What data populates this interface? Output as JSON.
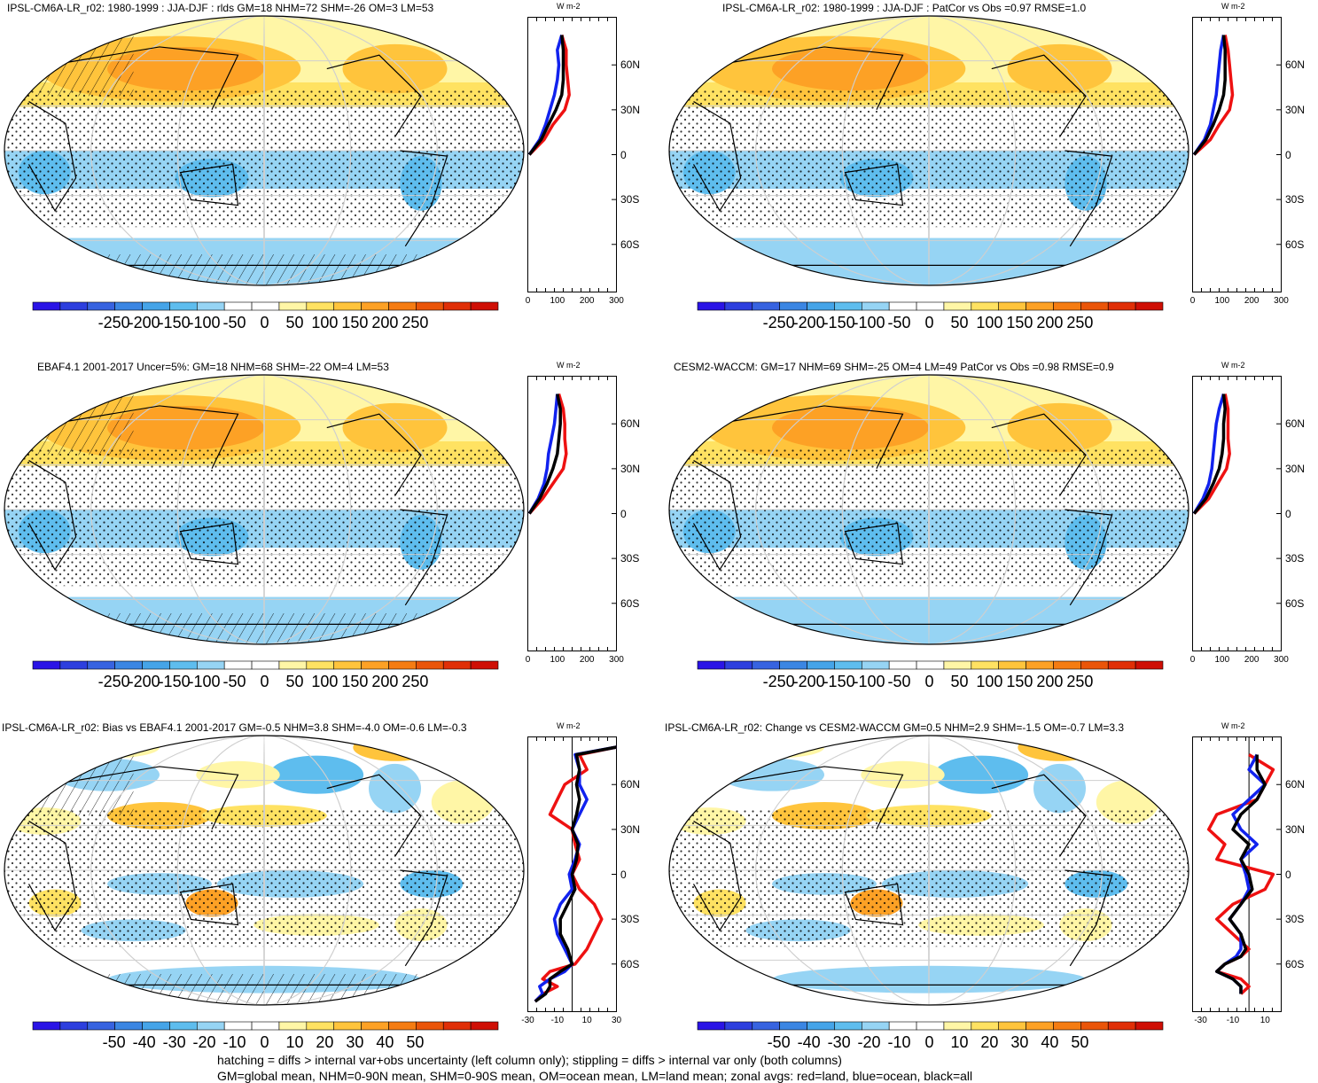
{
  "footer": {
    "line1": "hatching = diffs > internal var+obs uncertainty (left column only); stippling = diffs > internal var only (both columns)",
    "line2": "GM=global mean, NHM=0-90N mean, SHM=0-90S mean, OM=ocean mean, LM=land mean; zonal avgs: red=land, blue=ocean, black=all"
  },
  "colors": {
    "land": "#ee1111",
    "ocean": "#1122ee",
    "all": "#000000"
  },
  "chart_data": [
    {
      "type": "heatmap",
      "title": "IPSL-CM6A-LR_r02: 1980-1999 : JJA-DJF : rlds GM=18 NHM=72 SHM=-26 OM=3 LM=53",
      "kind": "full",
      "hatching": true,
      "colorbar": {
        "ticks": [
          "-250",
          "-200",
          "-150",
          "-100",
          "-50",
          "0",
          "50",
          "100",
          "150",
          "200",
          "250"
        ],
        "colors": [
          "#2a14e6",
          "#2d3fde",
          "#3763e0",
          "#3b86e3",
          "#45a4e8",
          "#5ebdee",
          "#96d4f4",
          "#ffffff",
          "#ffffff",
          "#fff6a6",
          "#ffe262",
          "#ffc43c",
          "#fda125",
          "#f57c12",
          "#ea5509",
          "#e02f07",
          "#cf0f05"
        ]
      },
      "zonal": {
        "xticks": [
          "0",
          "100",
          "200",
          "300"
        ],
        "xlim": [
          0,
          300
        ],
        "unit": "W m-2",
        "lat_labels": [
          "60N",
          "30N",
          "0",
          "30S",
          "60S"
        ],
        "lat": [
          0,
          10,
          20,
          30,
          40,
          50,
          60,
          70,
          80
        ],
        "land": [
          5,
          55,
          85,
          125,
          140,
          135,
          130,
          130,
          115
        ],
        "ocean": [
          5,
          40,
          60,
          75,
          90,
          100,
          105,
          100,
          115
        ],
        "all": [
          5,
          45,
          70,
          95,
          115,
          120,
          120,
          120,
          115
        ]
      }
    },
    {
      "type": "heatmap",
      "title": "IPSL-CM6A-LR_r02: 1980-1999 : JJA-DJF : PatCor vs Obs =0.97 RMSE=1.0",
      "kind": "full",
      "hatching": false,
      "colorbar": {
        "ticks": [
          "-250",
          "-200",
          "-150",
          "-100",
          "-50",
          "0",
          "50",
          "100",
          "150",
          "200",
          "250"
        ],
        "colors": [
          "#2a14e6",
          "#2d3fde",
          "#3763e0",
          "#3b86e3",
          "#45a4e8",
          "#5ebdee",
          "#96d4f4",
          "#ffffff",
          "#ffffff",
          "#fff6a6",
          "#ffe262",
          "#ffc43c",
          "#fda125",
          "#f57c12",
          "#ea5509",
          "#e02f07",
          "#cf0f05"
        ]
      },
      "zonal": {
        "xticks": [
          "0",
          "100",
          "200",
          "300"
        ],
        "xlim": [
          0,
          300
        ],
        "unit": "W m-2",
        "lat_labels": [
          "60N",
          "30N",
          "0",
          "30S",
          "60S"
        ],
        "lat": [
          0,
          10,
          20,
          30,
          40,
          50,
          60,
          70,
          80
        ],
        "land": [
          5,
          60,
          90,
          125,
          135,
          130,
          125,
          120,
          110
        ],
        "ocean": [
          5,
          40,
          60,
          70,
          80,
          85,
          90,
          95,
          105
        ],
        "all": [
          5,
          45,
          70,
          90,
          105,
          110,
          110,
          110,
          105
        ]
      }
    },
    {
      "type": "heatmap",
      "title": "EBAF4.1 2001-2017 Uncer=5%: GM=18 NHM=68 SHM=-22 OM=4 LM=53",
      "kind": "full",
      "hatching": true,
      "colorbar": {
        "ticks": [
          "-250",
          "-200",
          "-150",
          "-100",
          "-50",
          "0",
          "50",
          "100",
          "150",
          "200",
          "250"
        ],
        "colors": [
          "#2a14e6",
          "#2d3fde",
          "#3763e0",
          "#3b86e3",
          "#45a4e8",
          "#5ebdee",
          "#96d4f4",
          "#ffffff",
          "#ffffff",
          "#fff6a6",
          "#ffe262",
          "#ffc43c",
          "#fda125",
          "#f57c12",
          "#ea5509",
          "#e02f07",
          "#cf0f05"
        ]
      },
      "zonal": {
        "xticks": [
          "0",
          "100",
          "200",
          "300"
        ],
        "xlim": [
          0,
          300
        ],
        "unit": "W m-2",
        "lat_labels": [
          "60N",
          "30N",
          "0",
          "30S",
          "60S"
        ],
        "lat": [
          0,
          10,
          20,
          30,
          40,
          50,
          60,
          70,
          80
        ],
        "land": [
          5,
          50,
          85,
          120,
          130,
          125,
          125,
          120,
          105
        ],
        "ocean": [
          5,
          35,
          55,
          65,
          70,
          80,
          90,
          95,
          100
        ],
        "all": [
          5,
          40,
          65,
          85,
          100,
          105,
          110,
          110,
          100
        ]
      }
    },
    {
      "type": "heatmap",
      "title": "CESM2-WACCM: GM=17 NHM=69 SHM=-25 OM=4 LM=49 PatCor vs Obs =0.98 RMSE=0.9",
      "kind": "full",
      "hatching": false,
      "colorbar": {
        "ticks": [
          "-250",
          "-200",
          "-150",
          "-100",
          "-50",
          "0",
          "50",
          "100",
          "150",
          "200",
          "250"
        ],
        "colors": [
          "#2a14e6",
          "#2d3fde",
          "#3763e0",
          "#3b86e3",
          "#45a4e8",
          "#5ebdee",
          "#96d4f4",
          "#ffffff",
          "#ffffff",
          "#fff6a6",
          "#ffe262",
          "#ffc43c",
          "#fda125",
          "#f57c12",
          "#ea5509",
          "#e02f07",
          "#cf0f05"
        ]
      },
      "zonal": {
        "xticks": [
          "0",
          "100",
          "200",
          "300"
        ],
        "xlim": [
          0,
          300
        ],
        "unit": "W m-2",
        "lat_labels": [
          "60N",
          "30N",
          "0",
          "30S",
          "60S"
        ],
        "lat": [
          0,
          10,
          20,
          30,
          40,
          50,
          60,
          70,
          80
        ],
        "land": [
          5,
          55,
          85,
          115,
          125,
          120,
          120,
          120,
          110
        ],
        "ocean": [
          5,
          35,
          55,
          65,
          70,
          75,
          80,
          90,
          105
        ],
        "all": [
          5,
          45,
          70,
          90,
          100,
          105,
          105,
          110,
          105
        ]
      }
    },
    {
      "type": "heatmap",
      "title": "IPSL-CM6A-LR_r02: Bias vs EBAF4.1 2001-2017 GM=-0.5 NHM=3.8 SHM=-4.0 OM=-0.6 LM=-0.3",
      "kind": "diff",
      "hatching": true,
      "colorbar": {
        "ticks": [
          "-50",
          "-40",
          "-30",
          "-20",
          "-10",
          "0",
          "10",
          "20",
          "30",
          "40",
          "50"
        ],
        "colors": [
          "#2a14e6",
          "#2d3fde",
          "#3763e0",
          "#3b86e3",
          "#45a4e8",
          "#5ebdee",
          "#96d4f4",
          "#ffffff",
          "#ffffff",
          "#fff6a6",
          "#ffe262",
          "#ffc43c",
          "#fda125",
          "#f57c12",
          "#ea5509",
          "#e02f07",
          "#cf0f05"
        ]
      },
      "zonal": {
        "xticks": [
          "-30",
          "-10",
          "10",
          "30"
        ],
        "xlim": [
          -30,
          30
        ],
        "unit": "W m-2",
        "lat_labels": [
          "60N",
          "30N",
          "0",
          "30S",
          "60S"
        ],
        "lat": [
          -85,
          -80,
          -75,
          -70,
          -65,
          -60,
          -50,
          -40,
          -30,
          -20,
          -10,
          0,
          10,
          20,
          30,
          40,
          50,
          60,
          70,
          80,
          85
        ],
        "land": [
          -25,
          -20,
          -10,
          -20,
          -15,
          2,
          10,
          15,
          20,
          15,
          5,
          0,
          5,
          2,
          0,
          -15,
          -10,
          -5,
          10,
          5,
          30
        ],
        "ocean": [
          -25,
          -20,
          -22,
          -15,
          -5,
          0,
          -5,
          -10,
          -12,
          -8,
          0,
          -2,
          2,
          5,
          0,
          5,
          10,
          5,
          5,
          2,
          30
        ],
        "all": [
          -25,
          -18,
          -15,
          -15,
          -8,
          0,
          -3,
          -8,
          -8,
          -3,
          2,
          0,
          3,
          4,
          0,
          3,
          5,
          3,
          5,
          3,
          30
        ]
      }
    },
    {
      "type": "heatmap",
      "title": "IPSL-CM6A-LR_r02: Change vs CESM2-WACCM GM=0.5 NHM=2.9 SHM=-1.5 OM=-0.7 LM=3.3",
      "kind": "diff",
      "hatching": false,
      "colorbar": {
        "ticks": [
          "-50",
          "-40",
          "-30",
          "-20",
          "-10",
          "0",
          "10",
          "20",
          "30",
          "40",
          "50"
        ],
        "colors": [
          "#2a14e6",
          "#2d3fde",
          "#3763e0",
          "#3b86e3",
          "#45a4e8",
          "#5ebdee",
          "#96d4f4",
          "#ffffff",
          "#ffffff",
          "#fff6a6",
          "#ffe262",
          "#ffc43c",
          "#fda125",
          "#f57c12",
          "#ea5509",
          "#e02f07",
          "#cf0f05"
        ]
      },
      "zonal": {
        "xticks": [
          "-30",
          "-10",
          "10"
        ],
        "xlim": [
          -35,
          20
        ],
        "unit": "W m-2",
        "lat_labels": [
          "60N",
          "30N",
          "0",
          "30S",
          "60S"
        ],
        "lat": [
          -80,
          -75,
          -70,
          -65,
          -60,
          -55,
          -50,
          -40,
          -30,
          -20,
          -10,
          0,
          10,
          20,
          30,
          40,
          50,
          60,
          70,
          80
        ],
        "land": [
          -5,
          0,
          -5,
          -20,
          -15,
          -5,
          0,
          -10,
          -20,
          -10,
          10,
          15,
          -20,
          -15,
          -25,
          -20,
          5,
          10,
          15,
          0
        ],
        "ocean": [
          -5,
          -5,
          -10,
          -20,
          -15,
          -8,
          -5,
          -5,
          -12,
          -5,
          0,
          -2,
          -5,
          5,
          -5,
          -10,
          0,
          10,
          0,
          5
        ],
        "all": [
          -5,
          -5,
          -10,
          -20,
          -15,
          -5,
          -2,
          -5,
          -12,
          -5,
          2,
          0,
          -5,
          0,
          -10,
          -5,
          5,
          10,
          5,
          5
        ]
      }
    }
  ]
}
